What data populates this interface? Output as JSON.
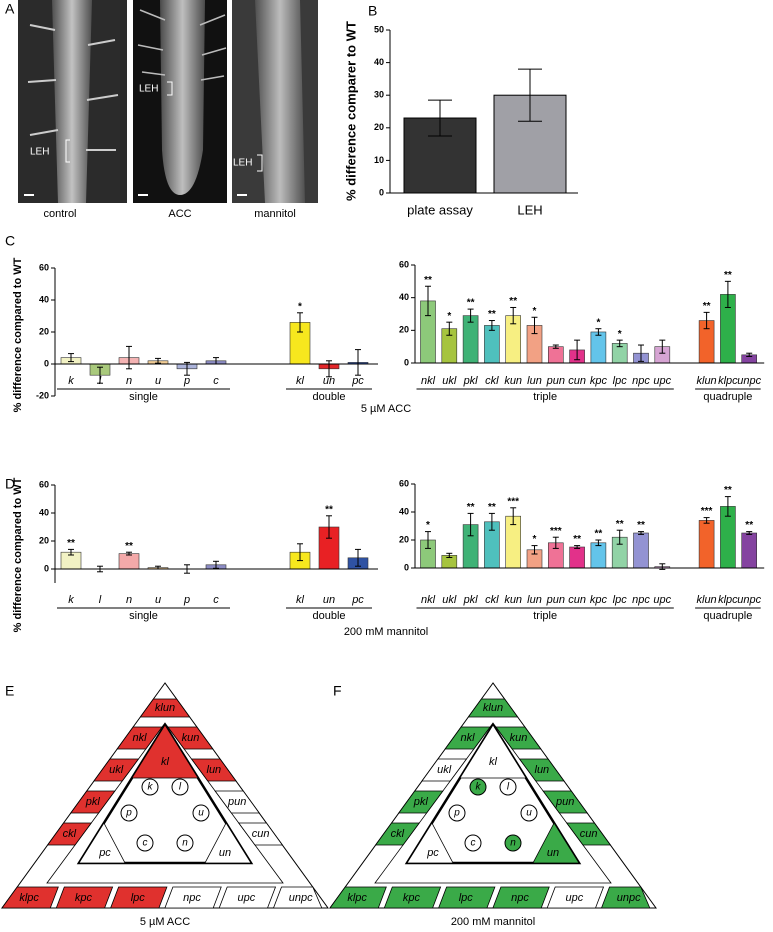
{
  "panel_a": {
    "letter": "A",
    "images": [
      {
        "caption": "control",
        "marker": "LEH"
      },
      {
        "caption": "ACC",
        "marker": "LEH"
      },
      {
        "caption": "mannitol",
        "marker": "LEH"
      }
    ]
  },
  "chart_data": [
    {
      "type": "bar",
      "letter": "B",
      "y_label": "% difference comparer to WT",
      "categories": [
        "plate assay",
        "LEH"
      ],
      "values": [
        23,
        30
      ],
      "errors": [
        5.5,
        8
      ],
      "colors": [
        "#333333",
        "#a0a0a6"
      ],
      "ylim": [
        0,
        50
      ],
      "yticks": [
        0,
        10,
        20,
        30,
        40,
        50
      ]
    },
    {
      "type": "grouped-bar",
      "letter": "C",
      "y_label": "% difference compared to WT",
      "condition": "5 µM ACC",
      "ylim": [
        -20,
        60
      ],
      "yticks": [
        -20,
        0,
        20,
        40,
        60
      ],
      "groups": [
        {
          "name": "single",
          "categories": [
            "k",
            "l",
            "n",
            "u",
            "p",
            "c"
          ],
          "values": [
            4,
            -7,
            4,
            2,
            -3,
            2
          ],
          "errors": [
            2.5,
            5,
            7,
            1.5,
            4,
            2
          ],
          "significance": [
            null,
            null,
            null,
            null,
            null,
            null
          ],
          "colors": [
            "#f2f2c4",
            "#a9c97c",
            "#f4b3b3",
            "#f2cd96",
            "#abb3da",
            "#8c8cc4"
          ]
        },
        {
          "name": "double",
          "categories": [
            "kl",
            "un",
            "pc"
          ],
          "values": [
            26,
            -3,
            1
          ],
          "errors": [
            6,
            5,
            8
          ],
          "significance": [
            "*",
            null,
            null
          ],
          "colors": [
            "#f7e71e",
            "#e3262a",
            "#2f52a3"
          ]
        }
      ]
    },
    {
      "type": "grouped-bar",
      "ylim": [
        0,
        60
      ],
      "yticks": [
        0,
        20,
        40,
        60
      ],
      "groups": [
        {
          "name": "triple",
          "categories": [
            "nkl",
            "ukl",
            "pkl",
            "ckl",
            "kun",
            "lun",
            "pun",
            "cun",
            "kpc",
            "lpc",
            "npc",
            "upc"
          ],
          "values": [
            38,
            21,
            29,
            23,
            29,
            23,
            10,
            8,
            19,
            12,
            6,
            10
          ],
          "errors": [
            9,
            4,
            4,
            3,
            5,
            5,
            1,
            6,
            2,
            2,
            5,
            4
          ],
          "significance": [
            "**",
            "*",
            "**",
            "**",
            "**",
            "*",
            null,
            null,
            "*",
            "*",
            null,
            null
          ],
          "colors": [
            "#8dc97a",
            "#a6c43f",
            "#3fb276",
            "#4fc0bd",
            "#f7ef82",
            "#f2a184",
            "#ef7296",
            "#e2318a",
            "#63c4ea",
            "#91d3a6",
            "#9393d3",
            "#d6a4d3"
          ]
        },
        {
          "name": "quadruple",
          "categories": [
            "klun",
            "klpc",
            "unpc"
          ],
          "values": [
            26,
            42,
            5
          ],
          "errors": [
            5,
            8,
            1
          ],
          "significance": [
            "**",
            "**",
            null
          ],
          "colors": [
            "#f2632a",
            "#2eb04a",
            "#8443a0"
          ]
        }
      ]
    },
    {
      "type": "grouped-bar",
      "letter": "D",
      "y_label": "% difference compared to WT",
      "condition": "200 mM mannitol",
      "ylim": [
        -10,
        60
      ],
      "yticks": [
        0,
        20,
        40,
        60
      ],
      "groups": [
        {
          "name": "single",
          "categories": [
            "k",
            "l",
            "n",
            "u",
            "p",
            "c"
          ],
          "values": [
            12,
            0,
            11,
            1,
            0,
            3
          ],
          "errors": [
            2,
            2,
            1,
            1,
            3,
            2.5
          ],
          "significance": [
            "**",
            null,
            "**",
            null,
            null,
            null
          ],
          "colors": [
            "#f2f2c4",
            "#a9c97c",
            "#f4a9a9",
            "#f2cd96",
            "#abb3da",
            "#8c8cc4"
          ]
        },
        {
          "name": "double",
          "categories": [
            "kl",
            "un",
            "pc"
          ],
          "values": [
            12,
            30,
            8
          ],
          "errors": [
            6,
            8,
            6
          ],
          "significance": [
            null,
            "**",
            null
          ],
          "colors": [
            "#f7e71e",
            "#e82124",
            "#2f52a3"
          ]
        }
      ]
    },
    {
      "type": "grouped-bar",
      "ylim": [
        0,
        60
      ],
      "yticks": [
        0,
        20,
        40,
        60
      ],
      "groups": [
        {
          "name": "triple",
          "categories": [
            "nkl",
            "ukl",
            "pkl",
            "ckl",
            "kun",
            "lun",
            "pun",
            "cun",
            "kpc",
            "lpc",
            "npc",
            "upc"
          ],
          "values": [
            20,
            9,
            31,
            33,
            37,
            13,
            18,
            15,
            18,
            22,
            25,
            1
          ],
          "errors": [
            6,
            1.5,
            8,
            6,
            6,
            3,
            4,
            1,
            2,
            5,
            1,
            2
          ],
          "significance": [
            "*",
            null,
            "**",
            "**",
            "***",
            "*",
            "***",
            "**",
            "**",
            "**",
            "**",
            null
          ],
          "colors": [
            "#8dc97a",
            "#a6c43f",
            "#3fb276",
            "#4fc0bd",
            "#f7ef82",
            "#f2a184",
            "#ef7296",
            "#e2318a",
            "#63c4ea",
            "#91d3a6",
            "#9393d3",
            "#d6a4d3"
          ]
        },
        {
          "name": "quadruple",
          "categories": [
            "klun",
            "klpc",
            "unpc"
          ],
          "values": [
            34,
            44,
            25
          ],
          "errors": [
            2,
            7,
            1
          ],
          "significance": [
            "***",
            "**",
            "**"
          ],
          "colors": [
            "#f2632a",
            "#2eb04a",
            "#8443a0"
          ]
        }
      ]
    }
  ],
  "diagrams": [
    {
      "letter": "E",
      "caption": "5 µM ACC",
      "fill": "#e0312e",
      "nodes": [
        {
          "label": "klun",
          "highlighted": true
        },
        {
          "label": "nkl",
          "highlighted": true
        },
        {
          "label": "kun",
          "highlighted": true
        },
        {
          "label": "ukl",
          "highlighted": true
        },
        {
          "label": "lun",
          "highlighted": true
        },
        {
          "label": "pkl",
          "highlighted": true
        },
        {
          "label": "pun",
          "highlighted": false
        },
        {
          "label": "ckl",
          "highlighted": true
        },
        {
          "label": "cun",
          "highlighted": false
        },
        {
          "label": "klpc",
          "highlighted": true
        },
        {
          "label": "kpc",
          "highlighted": true
        },
        {
          "label": "lpc",
          "highlighted": true
        },
        {
          "label": "npc",
          "highlighted": false
        },
        {
          "label": "upc",
          "highlighted": false
        },
        {
          "label": "unpc",
          "highlighted": false
        },
        {
          "label": "kl",
          "highlighted": true
        },
        {
          "label": "pc",
          "highlighted": false
        },
        {
          "label": "un",
          "highlighted": false
        },
        {
          "label": "k",
          "highlighted": false
        },
        {
          "label": "l",
          "highlighted": false
        },
        {
          "label": "p",
          "highlighted": false
        },
        {
          "label": "u",
          "highlighted": false
        },
        {
          "label": "c",
          "highlighted": false
        },
        {
          "label": "n",
          "highlighted": false
        }
      ]
    },
    {
      "letter": "F",
      "caption": "200 mM mannitol",
      "fill": "#3aaa48",
      "nodes": [
        {
          "label": "klun",
          "highlighted": true
        },
        {
          "label": "nkl",
          "highlighted": true
        },
        {
          "label": "kun",
          "highlighted": true
        },
        {
          "label": "ukl",
          "highlighted": false
        },
        {
          "label": "lun",
          "highlighted": true
        },
        {
          "label": "pkl",
          "highlighted": true
        },
        {
          "label": "pun",
          "highlighted": true
        },
        {
          "label": "ckl",
          "highlighted": true
        },
        {
          "label": "cun",
          "highlighted": true
        },
        {
          "label": "klpc",
          "highlighted": true
        },
        {
          "label": "kpc",
          "highlighted": true
        },
        {
          "label": "lpc",
          "highlighted": true
        },
        {
          "label": "npc",
          "highlighted": true
        },
        {
          "label": "upc",
          "highlighted": false
        },
        {
          "label": "unpc",
          "highlighted": true
        },
        {
          "label": "kl",
          "highlighted": false
        },
        {
          "label": "pc",
          "highlighted": false
        },
        {
          "label": "un",
          "highlighted": true
        },
        {
          "label": "k",
          "highlighted": true
        },
        {
          "label": "l",
          "highlighted": false
        },
        {
          "label": "p",
          "highlighted": false
        },
        {
          "label": "u",
          "highlighted": false
        },
        {
          "label": "c",
          "highlighted": false
        },
        {
          "label": "n",
          "highlighted": true
        }
      ]
    }
  ]
}
